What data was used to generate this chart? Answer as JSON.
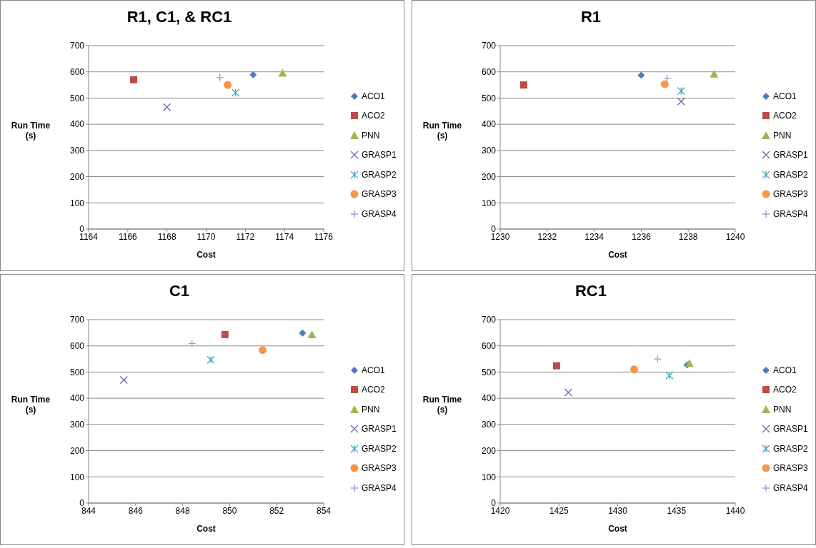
{
  "chart_data": [
    {
      "type": "scatter",
      "title": "R1, C1, & RC1",
      "xlabel": "Cost",
      "ylabel": "Run Time (s)",
      "xlim": [
        1164,
        1176
      ],
      "xticks": [
        1164,
        1166,
        1168,
        1170,
        1172,
        1174,
        1176
      ],
      "ylim": [
        0,
        700
      ],
      "yticks": [
        0,
        100,
        200,
        300,
        400,
        500,
        600,
        700
      ],
      "grid": "y",
      "legend": "right",
      "series": [
        {
          "name": "ACO1",
          "color": "#4a7ebb",
          "marker": "diamond",
          "x": [
            1172.4
          ],
          "values": [
            589
          ]
        },
        {
          "name": "ACO2",
          "color": "#be4b48",
          "marker": "square",
          "x": [
            1166.3
          ],
          "values": [
            570
          ]
        },
        {
          "name": "PNN",
          "color": "#98b954",
          "marker": "triangle",
          "x": [
            1173.9
          ],
          "values": [
            595
          ]
        },
        {
          "name": "GRASP1",
          "color": "#7d60a0",
          "marker": "x",
          "x": [
            1168.0
          ],
          "values": [
            465
          ]
        },
        {
          "name": "GRASP2",
          "color": "#46aac5",
          "marker": "cross",
          "x": [
            1171.5
          ],
          "values": [
            521
          ]
        },
        {
          "name": "GRASP3",
          "color": "#f79646",
          "marker": "circle",
          "x": [
            1171.1
          ],
          "values": [
            550
          ]
        },
        {
          "name": "GRASP4",
          "color": "#8aa5d4",
          "x": [
            1170.7
          ],
          "values": [
            578
          ]
        }
      ]
    },
    {
      "type": "scatter",
      "title": "R1",
      "xlabel": "Cost",
      "ylabel": "Run Time (s)",
      "xlim": [
        1230,
        1240
      ],
      "xticks": [
        1230,
        1232,
        1234,
        1236,
        1238,
        1240
      ],
      "ylim": [
        0,
        700
      ],
      "yticks": [
        0,
        100,
        200,
        300,
        400,
        500,
        600,
        700
      ],
      "grid": "y",
      "legend": "right",
      "series": [
        {
          "name": "ACO1",
          "color": "#4a7ebb",
          "marker": "diamond",
          "x": [
            1236.0
          ],
          "values": [
            587
          ]
        },
        {
          "name": "ACO2",
          "color": "#be4b48",
          "marker": "square",
          "x": [
            1231.0
          ],
          "values": [
            550
          ]
        },
        {
          "name": "PNN",
          "color": "#98b954",
          "marker": "triangle",
          "x": [
            1239.1
          ],
          "values": [
            592
          ]
        },
        {
          "name": "GRASP1",
          "color": "#7d60a0",
          "marker": "x",
          "x": [
            1237.7
          ],
          "values": [
            487
          ]
        },
        {
          "name": "GRASP2",
          "color": "#46aac5",
          "marker": "cross",
          "x": [
            1237.7
          ],
          "values": [
            527
          ]
        },
        {
          "name": "GRASP3",
          "color": "#f79646",
          "marker": "circle",
          "x": [
            1237.0
          ],
          "values": [
            553
          ]
        },
        {
          "name": "GRASP4",
          "color": "#8aa5d4",
          "x": [
            1237.1
          ],
          "values": [
            575
          ]
        }
      ]
    },
    {
      "type": "scatter",
      "title": "C1",
      "xlabel": "Cost",
      "ylabel": "Run Time (s)",
      "xlim": [
        844,
        854
      ],
      "xticks": [
        844,
        846,
        848,
        850,
        852,
        854
      ],
      "ylim": [
        0,
        700
      ],
      "yticks": [
        0,
        100,
        200,
        300,
        400,
        500,
        600,
        700
      ],
      "grid": "y",
      "legend": "right",
      "series": [
        {
          "name": "ACO1",
          "color": "#4a7ebb",
          "marker": "diamond",
          "x": [
            853.1
          ],
          "values": [
            649
          ]
        },
        {
          "name": "ACO2",
          "color": "#be4b48",
          "marker": "square",
          "x": [
            849.8
          ],
          "values": [
            643
          ]
        },
        {
          "name": "PNN",
          "color": "#98b954",
          "marker": "triangle",
          "x": [
            853.5
          ],
          "values": [
            643
          ]
        },
        {
          "name": "GRASP1",
          "color": "#7d60a0",
          "marker": "x",
          "x": [
            845.5
          ],
          "values": [
            470
          ]
        },
        {
          "name": "GRASP2",
          "color": "#46aac5",
          "marker": "cross",
          "x": [
            849.2
          ],
          "values": [
            547
          ]
        },
        {
          "name": "GRASP3",
          "color": "#f79646",
          "marker": "circle",
          "x": [
            851.4
          ],
          "values": [
            584
          ]
        },
        {
          "name": "GRASP4",
          "color": "#8aa5d4",
          "x": [
            848.4
          ],
          "values": [
            609
          ]
        }
      ]
    },
    {
      "type": "scatter",
      "title": "RC1",
      "xlabel": "Cost",
      "ylabel": "Run Time (s)",
      "xlim": [
        1420,
        1440
      ],
      "xticks": [
        1420,
        1425,
        1430,
        1435,
        1440
      ],
      "ylim": [
        0,
        700
      ],
      "yticks": [
        0,
        100,
        200,
        300,
        400,
        500,
        600,
        700
      ],
      "grid": "y",
      "legend": "right",
      "series": [
        {
          "name": "ACO1",
          "color": "#4a7ebb",
          "marker": "diamond",
          "x": [
            1435.9
          ],
          "values": [
            527
          ]
        },
        {
          "name": "ACO2",
          "color": "#be4b48",
          "marker": "square",
          "x": [
            1424.8
          ],
          "values": [
            524
          ]
        },
        {
          "name": "PNN",
          "color": "#98b954",
          "marker": "triangle",
          "x": [
            1436.1
          ],
          "values": [
            533
          ]
        },
        {
          "name": "GRASP1",
          "color": "#7d60a0",
          "marker": "x",
          "x": [
            1425.8
          ],
          "values": [
            422
          ]
        },
        {
          "name": "GRASP2",
          "color": "#46aac5",
          "marker": "cross",
          "x": [
            1434.4
          ],
          "values": [
            487
          ]
        },
        {
          "name": "GRASP3",
          "color": "#f79646",
          "marker": "circle",
          "x": [
            1431.4
          ],
          "values": [
            510
          ]
        },
        {
          "name": "GRASP4",
          "color": "#8aa5d4",
          "x": [
            1433.4
          ],
          "values": [
            550
          ]
        }
      ]
    }
  ]
}
